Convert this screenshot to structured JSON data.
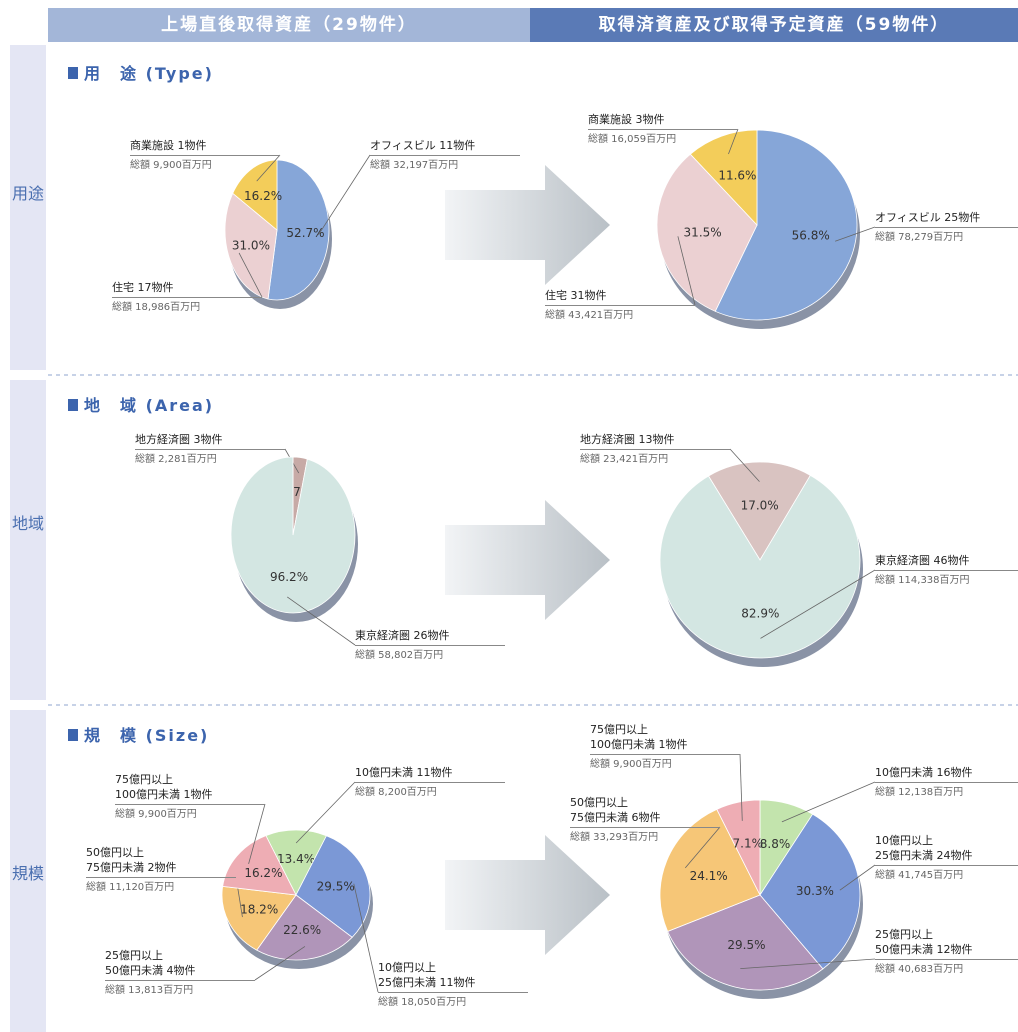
{
  "headers": [
    "上場直後取得資産（29物件）",
    "取得済資産及び取得予定資産（59物件）"
  ],
  "sections": [
    {
      "side_label": "用途",
      "title": "用　途 (Type)"
    },
    {
      "side_label": "地域",
      "title": "地　域 (Area)"
    },
    {
      "side_label": "規模",
      "title": "規　模 (Size)"
    }
  ],
  "chart_data": [
    {
      "type": "pie",
      "categories": [
        "オフィスビル 11物件",
        "住宅 17物件",
        "商業施設 1物件"
      ],
      "amounts": [
        "総額 32,197百万円",
        "総額 18,986百万円",
        "総額 9,900百万円"
      ],
      "values": [
        52.7,
        31.0,
        16.2
      ],
      "value_labels": [
        "52.7%",
        "31.0%",
        "16.2%"
      ],
      "colors": [
        "#86a6d8",
        "#ebd0d2",
        "#f3cd5a"
      ]
    },
    {
      "type": "pie",
      "categories": [
        "オフィスビル 25物件",
        "住宅 31物件",
        "商業施設 3物件"
      ],
      "amounts": [
        "総額 78,279百万円",
        "総額 43,421百万円",
        "総額 16,059百万円"
      ],
      "values": [
        56.8,
        31.5,
        11.6
      ],
      "value_labels": [
        "56.8%",
        "31.5%",
        "11.6%"
      ],
      "colors": [
        "#86a6d8",
        "#ebd0d2",
        "#f3cd5a"
      ]
    },
    {
      "type": "pie",
      "categories": [
        "地方経済圏 3物件",
        "東京経済圏 26物件"
      ],
      "amounts": [
        "総額 2,281百万円",
        "総額 58,802百万円"
      ],
      "values": [
        3.7,
        96.2
      ],
      "value_labels": [
        "3.7%",
        "96.2%"
      ],
      "colors": [
        "#c7aaa6",
        "#d3e6e2"
      ]
    },
    {
      "type": "pie",
      "categories": [
        "地方経済圏 13物件",
        "東京経済圏 46物件"
      ],
      "amounts": [
        "総額 23,421百万円",
        "総額 114,338百万円"
      ],
      "values": [
        17.0,
        82.9
      ],
      "value_labels": [
        "17.0%",
        "82.9%"
      ],
      "colors": [
        "#d9c3c1",
        "#d3e6e2"
      ]
    },
    {
      "type": "pie",
      "categories": [
        "10億円未満 11物件",
        "10億円以上\n25億円未満 11物件",
        "25億円以上\n50億円未満 4物件",
        "50億円以上\n75億円未満 2物件",
        "75億円以上\n100億円未満 1物件"
      ],
      "amounts": [
        "総額 8,200百万円",
        "総額 18,050百万円",
        "総額 13,813百万円",
        "総額 11,120百万円",
        "総額 9,900百万円"
      ],
      "values": [
        13.4,
        29.5,
        22.6,
        18.2,
        16.2
      ],
      "value_labels": [
        "13.4%",
        "29.5%",
        "22.6%",
        "18.2%",
        "16.2%"
      ],
      "colors": [
        "#c3e4ad",
        "#7b98d6",
        "#b095b9",
        "#f6c677",
        "#eeadb4"
      ]
    },
    {
      "type": "pie",
      "categories": [
        "10億円未満 16物件",
        "10億円以上\n25億円未満 24物件",
        "25億円以上\n50億円未満 12物件",
        "50億円以上\n75億円未満 6物件",
        "75億円以上\n100億円未満 1物件"
      ],
      "amounts": [
        "総額 12,138百万円",
        "総額 41,745百万円",
        "総額 40,683百万円",
        "総額 33,293百万円",
        "総額 9,900百万円"
      ],
      "values": [
        8.8,
        30.3,
        29.5,
        24.1,
        7.1
      ],
      "value_labels": [
        "8.8%",
        "30.3%",
        "29.5%",
        "24.1%",
        "7.1%"
      ],
      "colors": [
        "#c3e4ad",
        "#7b98d6",
        "#b095b9",
        "#f6c677",
        "#eeadb4"
      ]
    }
  ]
}
